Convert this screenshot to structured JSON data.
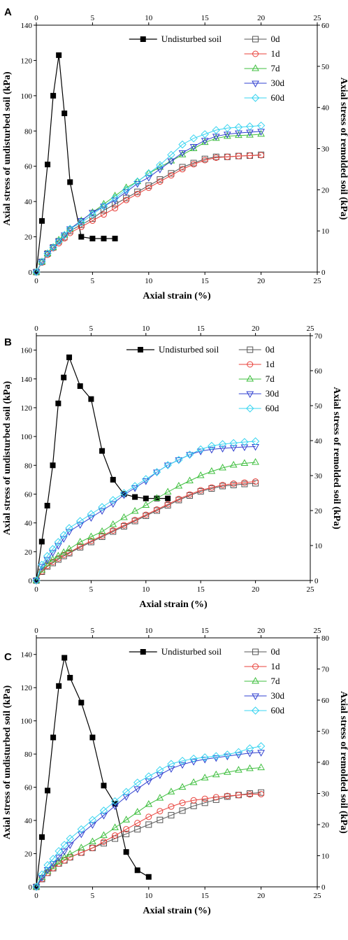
{
  "colors": {
    "undisturbed": "#000000",
    "0d": "#555555",
    "1d": "#e8403a",
    "7d": "#3fbf3f",
    "30d": "#3040d0",
    "60d": "#38d4f0"
  },
  "chart_data": [
    {
      "type": "line",
      "panel": "A",
      "xlabel": "Axial strain  (%)",
      "ylabel_left": "Axial stress of undisturbed soil (kPa)",
      "ylabel_right": "Axial stress of remolded soil (kPa)",
      "xlim": [
        0,
        25
      ],
      "ylim_left": [
        0,
        140
      ],
      "ylim_right": [
        0,
        60
      ],
      "xticks": [
        0,
        5,
        10,
        15,
        20,
        25
      ],
      "yticks_left": [
        0,
        20,
        40,
        60,
        80,
        100,
        120,
        140
      ],
      "yticks_right": [
        0,
        10,
        20,
        30,
        40,
        50,
        60
      ],
      "legend_position": "top-right",
      "series": [
        {
          "name": "Undisturbed soil",
          "axis": "left",
          "marker": "square-filled",
          "color_key": "undisturbed",
          "x": [
            0,
            0.5,
            1,
            1.5,
            2,
            2.5,
            3,
            4,
            5,
            6,
            7
          ],
          "y": [
            0,
            29,
            61,
            100,
            123,
            90,
            51,
            20,
            19,
            19,
            19
          ]
        },
        {
          "name": "0d",
          "axis": "right",
          "marker": "square",
          "color_key": "0d",
          "x": [
            0,
            0.5,
            1,
            1.5,
            2,
            2.5,
            3,
            4,
            5,
            6,
            7,
            8,
            9,
            10,
            11,
            12,
            13,
            14,
            15,
            16,
            17,
            18,
            19,
            20
          ],
          "y": [
            0,
            2.5,
            4.5,
            6,
            7.5,
            8.5,
            10,
            11.5,
            13,
            15,
            16.5,
            18,
            19.5,
            21,
            22.5,
            24,
            25.5,
            26.5,
            27.5,
            28,
            28,
            28.2,
            28.3,
            28.5
          ]
        },
        {
          "name": "1d",
          "axis": "right",
          "marker": "circle",
          "color_key": "1d",
          "x": [
            0,
            0.5,
            1,
            1.5,
            2,
            2.5,
            3,
            4,
            5,
            6,
            7,
            8,
            9,
            10,
            11,
            12,
            13,
            14,
            15,
            16,
            17,
            18,
            19,
            20
          ],
          "y": [
            0,
            2.3,
            4.2,
            5.8,
            7,
            8.2,
            9.5,
            11,
            12.5,
            14,
            15.5,
            17.5,
            19,
            20.5,
            22,
            23.5,
            25,
            26.2,
            27.2,
            27.8,
            28,
            28.2,
            28.3,
            28.4
          ]
        },
        {
          "name": "7d",
          "axis": "right",
          "marker": "triangle-up",
          "color_key": "7d",
          "x": [
            0,
            0.5,
            1,
            1.5,
            2,
            2.5,
            3,
            4,
            5,
            6,
            7,
            8,
            9,
            10,
            11,
            12,
            13,
            14,
            15,
            16,
            17,
            18,
            19,
            20
          ],
          "y": [
            0,
            2.5,
            4.5,
            6,
            7.8,
            9,
            10.5,
            12.5,
            14.5,
            16.5,
            18.5,
            20.5,
            22,
            24,
            25.5,
            27,
            28.5,
            30,
            31.5,
            32.5,
            33,
            33.2,
            33.3,
            33.5
          ]
        },
        {
          "name": "30d",
          "axis": "right",
          "marker": "triangle-down",
          "color_key": "30d",
          "x": [
            0,
            0.5,
            1,
            1.5,
            2,
            2.5,
            3,
            4,
            5,
            6,
            7,
            8,
            9,
            10,
            11,
            12,
            13,
            14,
            15,
            16,
            17,
            18,
            19,
            20
          ],
          "y": [
            0,
            2.5,
            4.5,
            6,
            7.5,
            9,
            10.5,
            12.5,
            14.5,
            16,
            17.5,
            19.5,
            21.5,
            23,
            25,
            27,
            29,
            30.5,
            32,
            33,
            33.5,
            33.8,
            34,
            34.2
          ]
        },
        {
          "name": "60d",
          "axis": "right",
          "marker": "diamond",
          "color_key": "60d",
          "x": [
            0,
            0.5,
            1,
            1.5,
            2,
            2.5,
            3,
            4,
            5,
            6,
            7,
            8,
            9,
            10,
            11,
            12,
            13,
            14,
            15,
            16,
            17,
            18,
            19,
            20
          ],
          "y": [
            0,
            2.5,
            4.5,
            6,
            7.5,
            9,
            10.5,
            12,
            14,
            16,
            18,
            20,
            22,
            24,
            26,
            28.5,
            31,
            32.5,
            33.5,
            34.5,
            35,
            35.2,
            35.4,
            35.6
          ]
        }
      ]
    },
    {
      "type": "line",
      "panel": "B",
      "xlabel": "Axial strain  (%)",
      "ylabel_left": "Axial stress of undisturbed soil (kPa)",
      "ylabel_right": "Axial stress of remolded soil (kPa)",
      "xlim": [
        0,
        25
      ],
      "ylim_left": [
        0,
        170
      ],
      "ylim_right": [
        0,
        70
      ],
      "xticks": [
        0,
        5,
        10,
        15,
        20,
        25
      ],
      "yticks_left": [
        0,
        20,
        40,
        60,
        80,
        100,
        120,
        140,
        160
      ],
      "yticks_right": [
        0,
        10,
        20,
        30,
        40,
        50,
        60,
        70
      ],
      "legend_position": "top-right",
      "series": [
        {
          "name": "Undisturbed soil",
          "axis": "left",
          "marker": "square-filled",
          "color_key": "undisturbed",
          "x": [
            0,
            0.5,
            1,
            1.5,
            2,
            2.5,
            3,
            4,
            5,
            6,
            7,
            8,
            9,
            10,
            11,
            12
          ],
          "y": [
            0,
            27,
            52,
            80,
            123,
            141,
            155,
            135,
            126,
            90,
            70,
            60,
            58,
            57,
            57,
            57
          ]
        },
        {
          "name": "0d",
          "axis": "right",
          "marker": "square",
          "color_key": "0d",
          "x": [
            0,
            0.5,
            1,
            1.5,
            2,
            2.5,
            3,
            4,
            5,
            6,
            7,
            8,
            9,
            10,
            11,
            12,
            13,
            14,
            15,
            16,
            17,
            18,
            19,
            20
          ],
          "y": [
            0,
            2.5,
            4,
            5,
            6,
            7,
            7.8,
            9.5,
            11,
            12.5,
            14,
            15.5,
            17,
            18.5,
            20,
            21.5,
            23,
            24.3,
            25.5,
            26.3,
            27,
            27.3,
            27.6,
            27.8
          ]
        },
        {
          "name": "1d",
          "axis": "right",
          "marker": "circle",
          "color_key": "1d",
          "x": [
            0,
            0.5,
            1,
            1.5,
            2,
            2.5,
            3,
            4,
            5,
            6,
            7,
            8,
            9,
            10,
            11,
            12,
            13,
            14,
            15,
            16,
            17,
            18,
            19,
            20
          ],
          "y": [
            0,
            2.6,
            4.2,
            5.3,
            6.3,
            7.3,
            8,
            9.8,
            11.3,
            12.8,
            14.3,
            15.8,
            17.3,
            18.8,
            20.3,
            21.8,
            23.3,
            24.6,
            25.8,
            26.6,
            27.3,
            27.7,
            28,
            28.3
          ]
        },
        {
          "name": "7d",
          "axis": "right",
          "marker": "triangle-up",
          "color_key": "7d",
          "x": [
            0,
            0.5,
            1,
            1.5,
            2,
            2.5,
            3,
            4,
            5,
            6,
            7,
            8,
            9,
            10,
            11,
            12,
            13,
            14,
            15,
            16,
            17,
            18,
            19,
            20
          ],
          "y": [
            0,
            3,
            4.8,
            6,
            7,
            8,
            9,
            11,
            12.5,
            14,
            16,
            18,
            19.8,
            21.5,
            23.5,
            25.3,
            27,
            28.5,
            30,
            31.2,
            32.2,
            33,
            33.5,
            33.8
          ]
        },
        {
          "name": "30d",
          "axis": "right",
          "marker": "triangle-down",
          "color_key": "30d",
          "x": [
            0,
            0.5,
            1,
            1.5,
            2,
            2.5,
            3,
            4,
            5,
            6,
            7,
            8,
            9,
            10,
            11,
            12,
            13,
            14,
            15,
            16,
            17,
            18,
            19,
            20
          ],
          "y": [
            0,
            4,
            6,
            8,
            10,
            12,
            14,
            16,
            18,
            20,
            22,
            24.5,
            26.5,
            28.5,
            31,
            33,
            34.5,
            36,
            37,
            37.5,
            37.8,
            38,
            38.2,
            38.3
          ]
        },
        {
          "name": "60d",
          "axis": "right",
          "marker": "diamond",
          "color_key": "60d",
          "x": [
            0,
            0.5,
            1,
            1.5,
            2,
            2.5,
            3,
            4,
            5,
            6,
            7,
            8,
            9,
            10,
            11,
            12,
            13,
            14,
            15,
            16,
            17,
            18,
            19,
            20
          ],
          "y": [
            0,
            4.5,
            7,
            9,
            11,
            13,
            15,
            17,
            19,
            21,
            23,
            25,
            27,
            29,
            31,
            33,
            34.5,
            36,
            37.5,
            38.5,
            39,
            39.3,
            39.6,
            39.8
          ]
        }
      ]
    },
    {
      "type": "line",
      "panel": "C",
      "xlabel": "Axial strain  (%)",
      "ylabel_left": "Axial stress of undisturbed soil (kPa)",
      "ylabel_right": "Axial stress of remolded soil (kPa)",
      "xlim": [
        0,
        25
      ],
      "ylim_left": [
        0,
        150
      ],
      "ylim_right": [
        0,
        80
      ],
      "xticks": [
        0,
        5,
        10,
        15,
        20,
        25
      ],
      "yticks_left": [
        0,
        20,
        40,
        60,
        80,
        100,
        120,
        140
      ],
      "yticks_right": [
        0,
        10,
        20,
        30,
        40,
        50,
        60,
        70,
        80
      ],
      "legend_position": "top-right",
      "series": [
        {
          "name": "Undisturbed soil",
          "axis": "left",
          "marker": "square-filled",
          "color_key": "undisturbed",
          "x": [
            0,
            0.5,
            1,
            1.5,
            2,
            2.5,
            3,
            4,
            5,
            6,
            7,
            8,
            9,
            10
          ],
          "y": [
            0,
            30,
            58,
            90,
            121,
            138,
            126,
            111,
            90,
            61,
            50,
            21,
            10,
            6
          ]
        },
        {
          "name": "0d",
          "axis": "right",
          "marker": "square",
          "color_key": "0d",
          "x": [
            0,
            0.5,
            1,
            1.5,
            2,
            2.5,
            3,
            4,
            5,
            6,
            7,
            8,
            9,
            10,
            11,
            12,
            13,
            14,
            15,
            16,
            17,
            18,
            19,
            20
          ],
          "y": [
            0,
            2.5,
            4.5,
            6,
            7.5,
            8.5,
            9.5,
            11,
            12.5,
            14,
            15.5,
            17,
            18.5,
            20,
            21.5,
            23,
            24.5,
            26,
            27,
            28,
            29,
            29.5,
            30,
            30.3
          ]
        },
        {
          "name": "1d",
          "axis": "right",
          "marker": "circle",
          "color_key": "1d",
          "x": [
            0,
            0.5,
            1,
            1.5,
            2,
            2.5,
            3,
            4,
            5,
            6,
            7,
            8,
            9,
            10,
            11,
            12,
            13,
            14,
            15,
            16,
            17,
            18,
            19,
            20
          ],
          "y": [
            0,
            2.5,
            4.5,
            6,
            7.5,
            8.5,
            9.5,
            11,
            12.5,
            14.5,
            16.5,
            18.5,
            20.5,
            22.5,
            24.3,
            25.8,
            27,
            27.8,
            28.3,
            28.8,
            29.2,
            29.5,
            29.7,
            29.8
          ]
        },
        {
          "name": "7d",
          "axis": "right",
          "marker": "triangle-up",
          "color_key": "7d",
          "x": [
            0,
            0.5,
            1,
            1.5,
            2,
            2.5,
            3,
            4,
            5,
            6,
            7,
            8,
            9,
            10,
            11,
            12,
            13,
            14,
            15,
            16,
            17,
            18,
            19,
            20
          ],
          "y": [
            0,
            3,
            5,
            6.5,
            8,
            9.5,
            10.5,
            12.5,
            14.5,
            16.5,
            19,
            21.5,
            24,
            26.5,
            28.5,
            30.5,
            32,
            33.5,
            35,
            36,
            36.8,
            37.5,
            38,
            38.3
          ]
        },
        {
          "name": "30d",
          "axis": "right",
          "marker": "triangle-down",
          "color_key": "30d",
          "x": [
            0,
            0.5,
            1,
            1.5,
            2,
            2.5,
            3,
            4,
            5,
            6,
            7,
            8,
            9,
            10,
            11,
            12,
            13,
            14,
            15,
            16,
            17,
            18,
            19,
            20
          ],
          "y": [
            0,
            3,
            5.5,
            7.5,
            9.5,
            11.5,
            13.5,
            17,
            20,
            23,
            26,
            29,
            31.5,
            34,
            36,
            38,
            39.3,
            40.3,
            41,
            41.5,
            42,
            42.5,
            43,
            43.2
          ]
        },
        {
          "name": "60d",
          "axis": "right",
          "marker": "diamond",
          "color_key": "60d",
          "x": [
            0,
            0.5,
            1,
            1.5,
            2,
            2.5,
            3,
            4,
            5,
            6,
            7,
            8,
            9,
            10,
            11,
            12,
            13,
            14,
            15,
            16,
            17,
            18,
            19,
            20
          ],
          "y": [
            0,
            4,
            7,
            9,
            11.5,
            13.5,
            15.5,
            18.5,
            21.5,
            24.5,
            27.5,
            30.5,
            33.5,
            35.5,
            37.5,
            39.5,
            40.5,
            41.2,
            41.6,
            42,
            42.5,
            43.3,
            44.5,
            45.2
          ]
        }
      ]
    }
  ]
}
